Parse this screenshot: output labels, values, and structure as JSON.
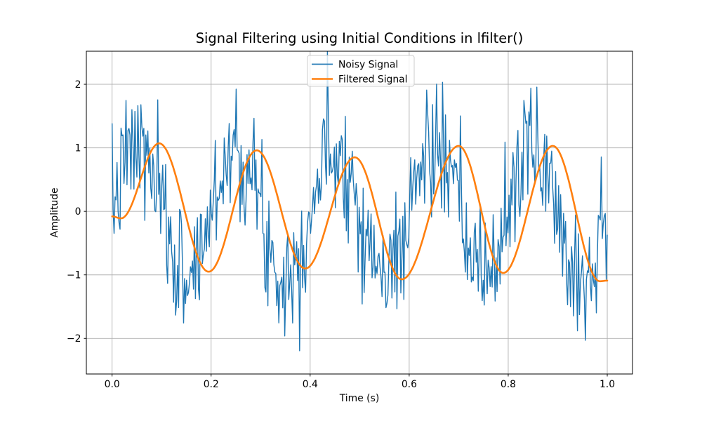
{
  "chart_data": {
    "type": "line",
    "title": "Signal Filtering using Initial Conditions in lfilter()",
    "xlabel": "Time (s)",
    "ylabel": "Amplitude",
    "xlim": [
      -0.052,
      1.051
    ],
    "ylim": [
      -2.56,
      2.52
    ],
    "x_ticks": [
      0.0,
      0.2,
      0.4,
      0.6,
      0.8,
      1.0
    ],
    "x_tick_labels": [
      "0.0",
      "0.2",
      "0.4",
      "0.6",
      "0.8",
      "1.0"
    ],
    "y_ticks": [
      -2,
      -1,
      0,
      1,
      2
    ],
    "y_tick_labels": [
      "−2",
      "−1",
      "0",
      "1",
      "2"
    ],
    "grid": true,
    "grid_color": "#b0b0b0",
    "background": "#ffffff",
    "legend": {
      "position": "upper center",
      "entries": [
        "Noisy Signal",
        "Filtered Signal"
      ]
    },
    "series": [
      {
        "name": "Noisy Signal",
        "color": "#1f77b4",
        "line_width": 1.4,
        "signal_model": {
          "kind": "noisy_sine",
          "n_samples": 500,
          "t_start": 0.0,
          "t_end": 1.0,
          "frequency_hz": 5,
          "amplitude": 1.0,
          "noise_std": 0.5,
          "seed": 7
        },
        "observed_range": [
          -2.32,
          2.32
        ]
      },
      {
        "name": "Filtered Signal",
        "color": "#ff7f0e",
        "line_width": 2.6,
        "interpolation": "smooth-through-extrema",
        "keypoints": [
          [
            0.0,
            -0.08
          ],
          [
            0.018,
            -0.11
          ],
          [
            0.095,
            1.07
          ],
          [
            0.195,
            -0.95
          ],
          [
            0.292,
            0.96
          ],
          [
            0.39,
            -0.9
          ],
          [
            0.49,
            0.85
          ],
          [
            0.585,
            -1.07
          ],
          [
            0.7,
            1.03
          ],
          [
            0.79,
            -0.97
          ],
          [
            0.89,
            1.03
          ],
          [
            0.985,
            -1.1
          ],
          [
            1.0,
            -1.09
          ]
        ]
      }
    ]
  }
}
